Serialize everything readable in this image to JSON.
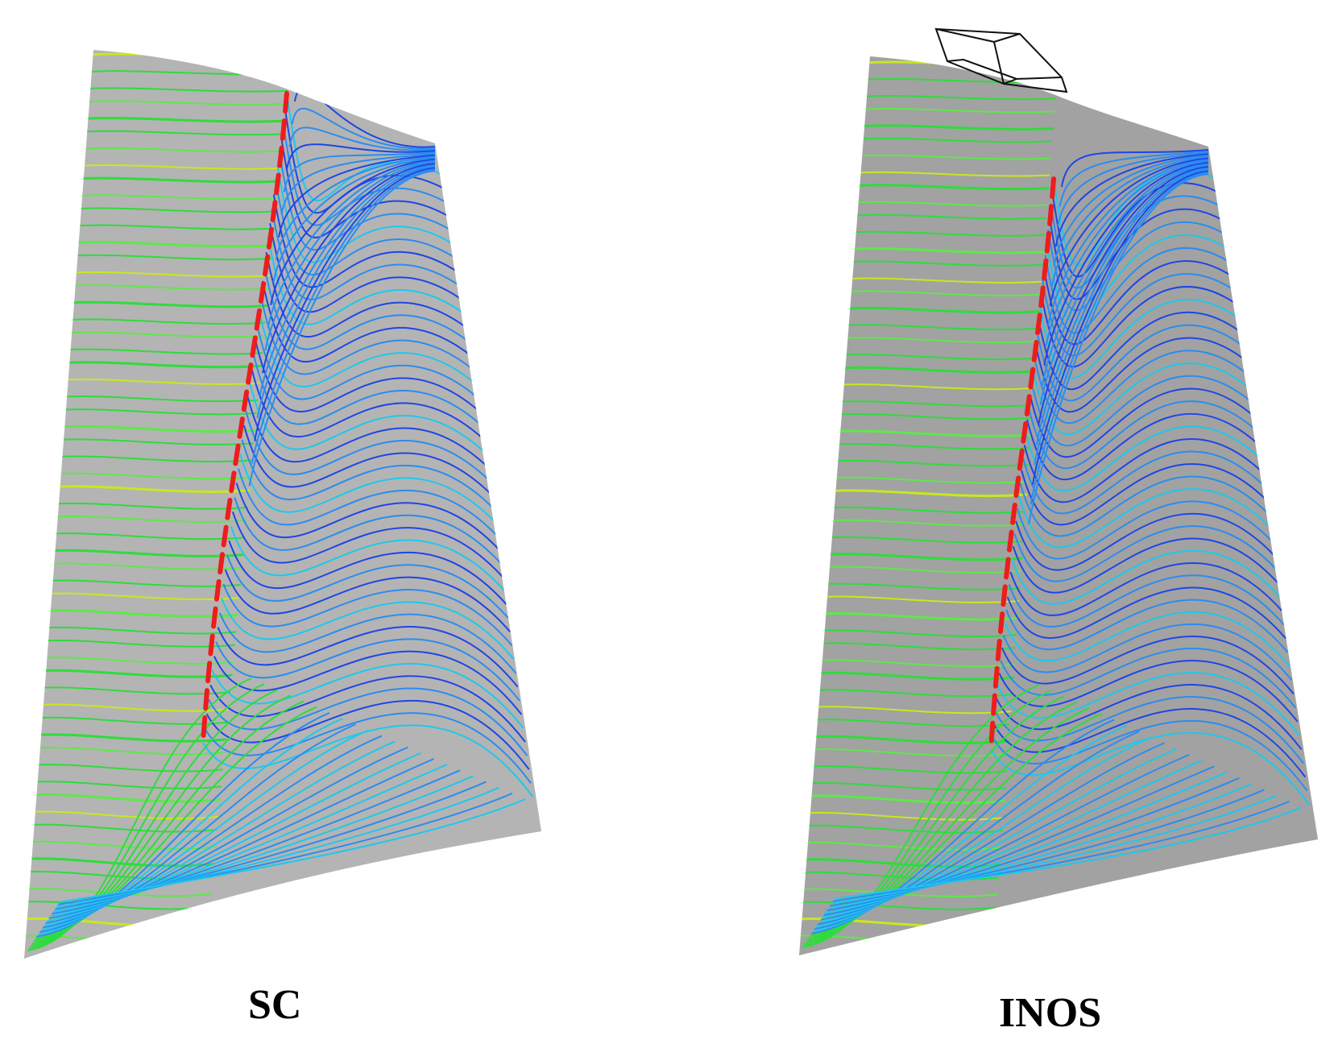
{
  "panels": [
    {
      "label": "SC",
      "surface_color": "#b4b4b4",
      "has_tip_geometry": false
    },
    {
      "label": "INOS",
      "surface_color": "#a2a2a2",
      "has_tip_geometry": true
    }
  ],
  "colors": {
    "background": "#ffffff",
    "streamline_green": "#2edc3c",
    "streamline_yellow": "#c8e81e",
    "streamline_cyan": "#1ec8ec",
    "streamline_light_blue": "#2a8cf0",
    "streamline_blue": "#1e46e6",
    "separation_line": "#ee1c1c",
    "outline": "#111111"
  }
}
